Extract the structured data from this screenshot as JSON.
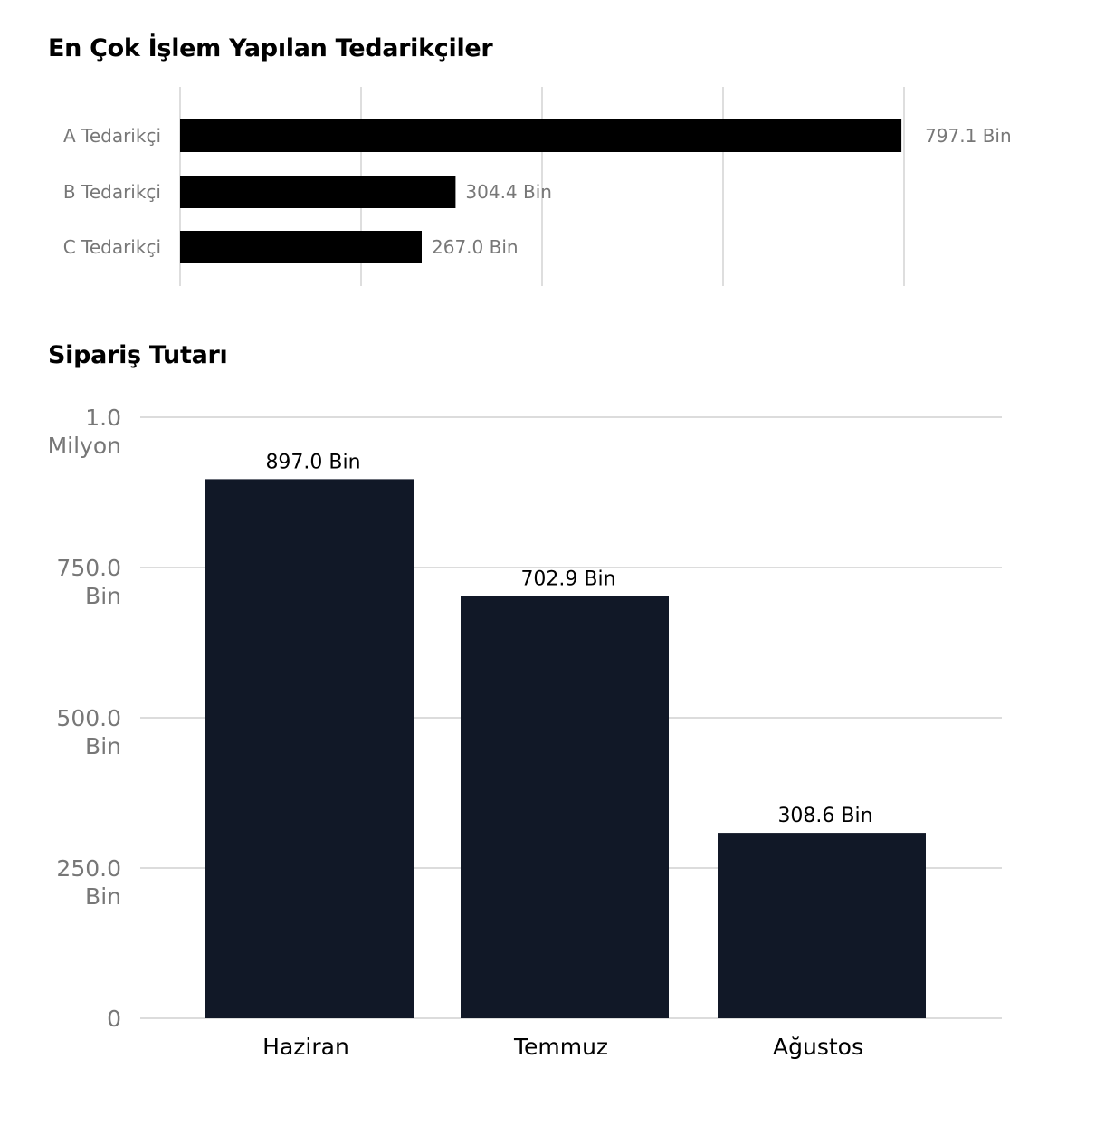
{
  "chart_data": [
    {
      "type": "bar",
      "orientation": "horizontal",
      "title": "En Çok İşlem Yapılan Tedarikçiler",
      "categories": [
        "A Tedarikçi",
        "B Tedarikçi",
        "C Tedarikçi"
      ],
      "values": [
        797.1,
        304.4,
        267.0
      ],
      "data_labels": [
        "797.1 Bin",
        "304.4 Bin",
        "267.0 Bin"
      ],
      "unit": "Bin",
      "xlim": [
        0,
        800
      ],
      "grid": true,
      "bar_color": "#000000"
    },
    {
      "type": "bar",
      "title": "Sipariş Tutarı",
      "categories": [
        "Haziran",
        "Temmuz",
        "Ağustos"
      ],
      "values": [
        897.0,
        702.9,
        308.6
      ],
      "data_labels": [
        "897.0 Bin",
        "702.9 Bin",
        "308.6 Bin"
      ],
      "unit": "Bin",
      "ylim": [
        0,
        1000
      ],
      "yticks": [
        {
          "value": 0,
          "label": [
            "0"
          ]
        },
        {
          "value": 250,
          "label": [
            "250.0",
            "Bin"
          ]
        },
        {
          "value": 500,
          "label": [
            "500.0",
            "Bin"
          ]
        },
        {
          "value": 750,
          "label": [
            "750.0",
            "Bin"
          ]
        },
        {
          "value": 1000,
          "label": [
            "1.0",
            "Milyon"
          ]
        }
      ],
      "grid": true,
      "bar_color": "#111827"
    }
  ]
}
